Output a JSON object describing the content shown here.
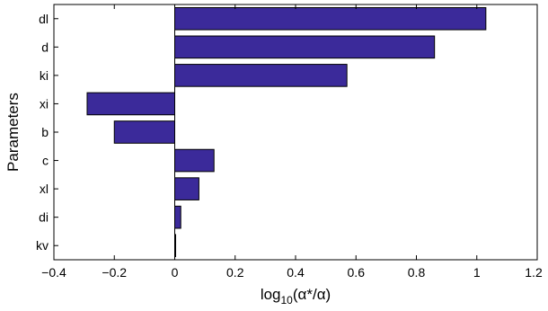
{
  "chart_data": {
    "type": "bar",
    "orientation": "horizontal",
    "categories": [
      "dl",
      "d",
      "ki",
      "xi",
      "b",
      "c",
      "xl",
      "di",
      "kv"
    ],
    "values": [
      1.03,
      0.86,
      0.57,
      -0.29,
      -0.2,
      0.13,
      0.08,
      0.02,
      0.003
    ],
    "xlabel_parts": [
      "log",
      "10",
      "(α*/α)"
    ],
    "ylabel": "Parameters",
    "xlim": [
      -0.4,
      1.2
    ],
    "xticks": [
      "-0.4",
      "-0.2",
      "0",
      "0.2",
      "0.4",
      "0.6",
      "0.8",
      "1",
      "1.2"
    ],
    "xtick_values": [
      -0.4,
      -0.2,
      0,
      0.2,
      0.4,
      0.6,
      0.8,
      1,
      1.2
    ],
    "grid": false,
    "zero_line": true,
    "bar_color": "#3b2a9a"
  }
}
